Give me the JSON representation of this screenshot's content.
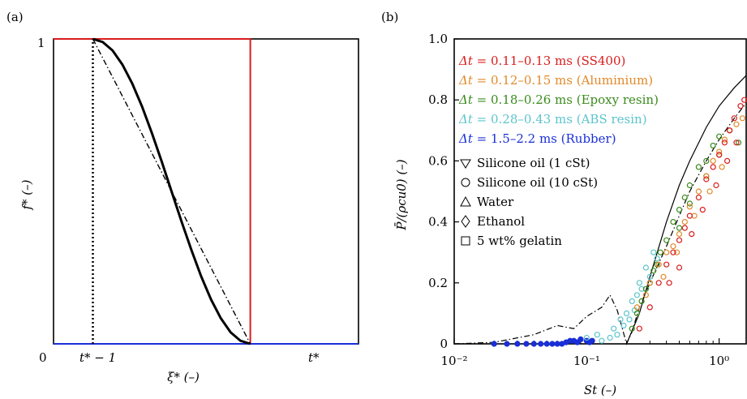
{
  "chart_data": [
    {
      "panel_label": "(a)",
      "type": "line",
      "xlabel": "ξ* (–)",
      "ylabel": "f* (–)",
      "x_tick_labels": [
        "0",
        "t* − 1",
        "t*"
      ],
      "y_tick_labels": [
        "1"
      ],
      "xlim": [
        -1.0,
        0.55
      ],
      "ylim": [
        0,
        1
      ],
      "x_ticks": [
        -1.0,
        -0.8,
        0.0
      ],
      "series": [
        {
          "style": "red-solid",
          "color": "#d81c1c",
          "points": [
            [
              -1.0,
              1.0
            ],
            [
              0.0,
              1.0
            ],
            [
              0.0,
              0.0
            ]
          ]
        },
        {
          "style": "blue-solid",
          "color": "#1a2fd6",
          "points": [
            [
              -1.0,
              0.0
            ],
            [
              0.55,
              0.0
            ]
          ]
        },
        {
          "style": "black-thick-smooth",
          "color": "#000000",
          "x": [
            -0.8,
            -0.75,
            -0.7,
            -0.65,
            -0.6,
            -0.55,
            -0.5,
            -0.45,
            -0.4,
            -0.35,
            -0.3,
            -0.25,
            -0.2,
            -0.15,
            -0.1,
            -0.05,
            0.0
          ],
          "y": [
            1.0,
            0.99,
            0.962,
            0.916,
            0.854,
            0.778,
            0.691,
            0.598,
            0.5,
            0.402,
            0.309,
            0.222,
            0.146,
            0.084,
            0.038,
            0.01,
            0.0
          ]
        },
        {
          "style": "black-dash-dot",
          "color": "#000000",
          "points": [
            [
              -0.8,
              1.0
            ],
            [
              0.0,
              0.0
            ]
          ]
        },
        {
          "style": "black-dotted-vertical",
          "color": "#000000",
          "points": [
            [
              -0.8,
              0.0
            ],
            [
              -0.8,
              1.0
            ]
          ]
        }
      ]
    },
    {
      "panel_label": "(b)",
      "type": "scatter",
      "xlabel": "St (–)",
      "ylabel": "P̄/(ρcu0) (–)",
      "x_scale": "log",
      "xlim": [
        0.01,
        1.6
      ],
      "ylim": [
        0,
        1.0
      ],
      "x_tick_labels": [
        "10⁻²",
        "10⁻¹",
        "10⁰"
      ],
      "y_ticks": [
        0,
        0.2,
        0.4,
        0.6,
        0.8,
        1.0
      ],
      "y_tick_labels": [
        "0",
        "0.2",
        "0.4",
        "0.6",
        "0.8",
        "1.0"
      ],
      "legend_location": "upper-left",
      "legend": [
        {
          "prefix": "Δt",
          "text": " = 0.11–0.13 ms (SS400)",
          "color": "#d81c1c"
        },
        {
          "prefix": "Δt",
          "text": " = 0.12–0.15 ms (Aluminium)",
          "color": "#e08a2a"
        },
        {
          "prefix": "Δt",
          "text": " = 0.18–0.26 ms (Epoxy resin)",
          "color": "#3a8a1c"
        },
        {
          "prefix": "Δt",
          "text": " = 0.28–0.43 ms (ABS resin)",
          "color": "#5cc4cc"
        },
        {
          "prefix": "Δt",
          "text": " = 1.5–2.2 ms (Rubber)",
          "color": "#1a2fd6"
        }
      ],
      "marker_legend": [
        {
          "marker": "triangle-down",
          "label": "Silicone oil (1 cSt)"
        },
        {
          "marker": "circle",
          "label": "Silicone oil (10 cSt)"
        },
        {
          "marker": "triangle-up",
          "label": "Water"
        },
        {
          "marker": "diamond",
          "label": "Ethanol"
        },
        {
          "marker": "square",
          "label": "5 wt% gelatin"
        }
      ],
      "lines": [
        {
          "style": "solid",
          "color": "#000000",
          "x": [
            0.2,
            0.25,
            0.3,
            0.4,
            0.5,
            0.6,
            0.8,
            1.0,
            1.3,
            1.6
          ],
          "y": [
            0.0,
            0.1,
            0.22,
            0.4,
            0.52,
            0.6,
            0.71,
            0.78,
            0.84,
            0.88
          ]
        },
        {
          "style": "dash-dot",
          "color": "#000000",
          "x": [
            0.01,
            0.02,
            0.04,
            0.06,
            0.08,
            0.1,
            0.13,
            0.15,
            0.17,
            0.2,
            0.22,
            0.25,
            0.3,
            0.4,
            0.5,
            0.6,
            0.8,
            1.0,
            1.3,
            1.6
          ],
          "y": [
            0.0,
            0.005,
            0.03,
            0.06,
            0.05,
            0.09,
            0.12,
            0.16,
            0.11,
            0.0,
            0.04,
            0.12,
            0.2,
            0.32,
            0.42,
            0.5,
            0.6,
            0.67,
            0.74,
            0.79
          ]
        }
      ],
      "series": [
        {
          "name": "Rubber",
          "color": "#1a2fd6",
          "points": [
            [
              0.02,
              0.0
            ],
            [
              0.025,
              0.0
            ],
            [
              0.03,
              0.0
            ],
            [
              0.035,
              0.0
            ],
            [
              0.04,
              0.0
            ],
            [
              0.045,
              0.0
            ],
            [
              0.05,
              0.0
            ],
            [
              0.055,
              0.0
            ],
            [
              0.06,
              0.0
            ],
            [
              0.065,
              0.0
            ],
            [
              0.07,
              0.005
            ],
            [
              0.075,
              0.01
            ],
            [
              0.08,
              0.01
            ],
            [
              0.085,
              0.005
            ],
            [
              0.09,
              0.015
            ],
            [
              0.1,
              0.01
            ],
            [
              0.105,
              0.005
            ],
            [
              0.11,
              0.01
            ]
          ]
        },
        {
          "name": "ABS resin",
          "color": "#5cc4cc",
          "points": [
            [
              0.1,
              0.02
            ],
            [
              0.12,
              0.03
            ],
            [
              0.13,
              0.01
            ],
            [
              0.15,
              0.02
            ],
            [
              0.16,
              0.05
            ],
            [
              0.17,
              0.03
            ],
            [
              0.18,
              0.08
            ],
            [
              0.19,
              0.06
            ],
            [
              0.2,
              0.1
            ],
            [
              0.21,
              0.08
            ],
            [
              0.22,
              0.14
            ],
            [
              0.23,
              0.11
            ],
            [
              0.24,
              0.16
            ],
            [
              0.25,
              0.2
            ],
            [
              0.26,
              0.18
            ],
            [
              0.28,
              0.25
            ],
            [
              0.3,
              0.22
            ],
            [
              0.32,
              0.3
            ],
            [
              0.34,
              0.28
            ]
          ]
        },
        {
          "name": "Epoxy resin",
          "color": "#3a8a1c",
          "points": [
            [
              0.22,
              0.05
            ],
            [
              0.24,
              0.1
            ],
            [
              0.26,
              0.14
            ],
            [
              0.28,
              0.18
            ],
            [
              0.3,
              0.2
            ],
            [
              0.32,
              0.24
            ],
            [
              0.34,
              0.26
            ],
            [
              0.36,
              0.3
            ],
            [
              0.4,
              0.34
            ],
            [
              0.45,
              0.4
            ],
            [
              0.5,
              0.44
            ],
            [
              0.55,
              0.48
            ],
            [
              0.6,
              0.52
            ],
            [
              0.7,
              0.58
            ],
            [
              0.8,
              0.6
            ],
            [
              0.9,
              0.65
            ],
            [
              1.0,
              0.68
            ],
            [
              1.2,
              0.7
            ],
            [
              1.4,
              0.66
            ],
            [
              1.0,
              0.62
            ],
            [
              0.8,
              0.55
            ],
            [
              0.6,
              0.46
            ],
            [
              0.5,
              0.38
            ]
          ]
        },
        {
          "name": "Aluminium",
          "color": "#e08a2a",
          "points": [
            [
              0.24,
              0.12
            ],
            [
              0.28,
              0.16
            ],
            [
              0.3,
              0.2
            ],
            [
              0.35,
              0.26
            ],
            [
              0.4,
              0.3
            ],
            [
              0.45,
              0.32
            ],
            [
              0.5,
              0.36
            ],
            [
              0.55,
              0.4
            ],
            [
              0.6,
              0.45
            ],
            [
              0.7,
              0.5
            ],
            [
              0.8,
              0.55
            ],
            [
              0.9,
              0.6
            ],
            [
              1.0,
              0.63
            ],
            [
              1.1,
              0.67
            ],
            [
              1.2,
              0.7
            ],
            [
              1.35,
              0.72
            ],
            [
              1.5,
              0.74
            ],
            [
              0.38,
              0.22
            ],
            [
              0.48,
              0.3
            ],
            [
              0.65,
              0.42
            ],
            [
              0.85,
              0.5
            ],
            [
              1.05,
              0.58
            ]
          ]
        },
        {
          "name": "SS400",
          "color": "#d81c1c",
          "points": [
            [
              0.25,
              0.05
            ],
            [
              0.3,
              0.12
            ],
            [
              0.35,
              0.2
            ],
            [
              0.4,
              0.26
            ],
            [
              0.45,
              0.3
            ],
            [
              0.5,
              0.34
            ],
            [
              0.55,
              0.38
            ],
            [
              0.6,
              0.42
            ],
            [
              0.7,
              0.48
            ],
            [
              0.8,
              0.54
            ],
            [
              0.9,
              0.58
            ],
            [
              1.0,
              0.62
            ],
            [
              1.1,
              0.66
            ],
            [
              1.2,
              0.7
            ],
            [
              1.3,
              0.74
            ],
            [
              1.45,
              0.78
            ],
            [
              1.55,
              0.8
            ],
            [
              0.42,
              0.2
            ],
            [
              0.5,
              0.25
            ],
            [
              0.62,
              0.36
            ],
            [
              0.75,
              0.44
            ],
            [
              0.95,
              0.52
            ],
            [
              1.15,
              0.6
            ],
            [
              1.35,
              0.66
            ]
          ]
        }
      ]
    }
  ]
}
